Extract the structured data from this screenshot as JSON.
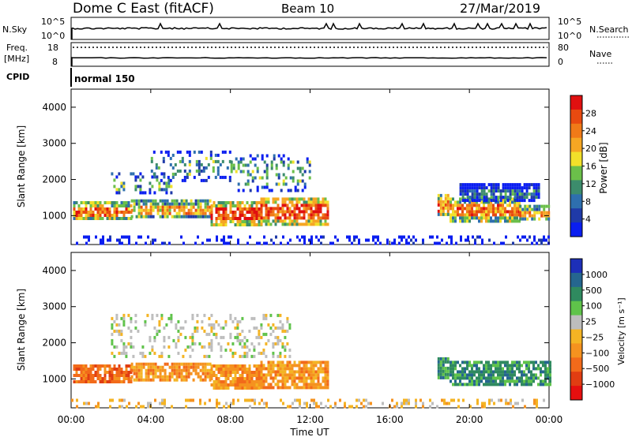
{
  "header": {
    "station": "Dome C East (fitACF)",
    "beam": "Beam 10",
    "date": "27/Mar/2019"
  },
  "top_panels": {
    "nsky_label": "N.Sky",
    "nsky_tick_hi": "10^5",
    "nsky_tick_lo": "10^0",
    "nsearch_label": "N.Search",
    "nsearch_tick_hi": "10^5",
    "nsearch_tick_lo": "10^0",
    "freq_label_1": "Freq.",
    "freq_label_2": "[MHz]",
    "freq_tick_hi": "18",
    "freq_tick_lo": "8",
    "nave_label": "Nave",
    "nave_tick_hi": "80",
    "nave_tick_lo": "0",
    "cpid_label": "CPID",
    "cpid_value": "normal 150"
  },
  "chart_data": [
    {
      "type": "heatmap",
      "name": "power",
      "ylabel": "Slant Range [km]",
      "yticks": [
        "1000",
        "2000",
        "3000",
        "4000"
      ],
      "ylim": [
        200,
        4500
      ],
      "colorbar_label": "Power [dB]",
      "colorbar_ticks": [
        "4",
        "8",
        "12",
        "16",
        "20",
        "24",
        "28"
      ],
      "colorbar_range": [
        0,
        32
      ],
      "colors": [
        "#0a1ef0",
        "#1f3aa8",
        "#2e6fae",
        "#3c8c6c",
        "#6bbf4a",
        "#f2e02a",
        "#f5a623",
        "#f07a18",
        "#e84a10",
        "#e01010"
      ],
      "regions": [
        {
          "t0": 0.1,
          "t1": 3.0,
          "r0": 900,
          "r1": 1400,
          "level": 24
        },
        {
          "t0": 3.0,
          "t1": 7.0,
          "r0": 950,
          "r1": 1450,
          "level": 22
        },
        {
          "t0": 7.0,
          "t1": 9.5,
          "r0": 750,
          "r1": 1400,
          "level": 30
        },
        {
          "t0": 9.5,
          "t1": 12.9,
          "r0": 800,
          "r1": 1500,
          "level": 27
        },
        {
          "t0": 18.4,
          "t1": 18.9,
          "r0": 1000,
          "r1": 1600,
          "level": 24
        },
        {
          "t0": 19.0,
          "t1": 22.5,
          "r0": 850,
          "r1": 1500,
          "level": 26
        },
        {
          "t0": 22.5,
          "t1": 24.0,
          "r0": 900,
          "r1": 1300,
          "level": 22
        },
        {
          "t0": 2.0,
          "t1": 5.0,
          "r0": 1600,
          "r1": 2200,
          "level": 10
        },
        {
          "t0": 4.0,
          "t1": 8.0,
          "r0": 2000,
          "r1": 2800,
          "level": 12
        },
        {
          "t0": 8.0,
          "t1": 12.0,
          "r0": 1700,
          "r1": 2700,
          "level": 9
        },
        {
          "t0": 19.5,
          "t1": 23.5,
          "r0": 1400,
          "r1": 1900,
          "level": 8
        },
        {
          "t0": 0.0,
          "t1": 24.0,
          "r0": 200,
          "r1": 450,
          "level": 6
        }
      ]
    },
    {
      "type": "heatmap",
      "name": "velocity",
      "ylabel": "Slant Range [km]",
      "yticks": [
        "1000",
        "2000",
        "3000",
        "4000"
      ],
      "ylim": [
        200,
        4500
      ],
      "colorbar_label": "Velocity [m s⁻¹]",
      "colorbar_ticks": [
        "1000",
        "500",
        "100",
        "25",
        "−25",
        "−100",
        "−500",
        "−1000"
      ],
      "colors": [
        "#1d2fb8",
        "#25668f",
        "#2f8a5f",
        "#5fc34a",
        "#bdbdbd",
        "#f4b424",
        "#f5921f",
        "#f26a1a",
        "#e13d12",
        "#e60f0f"
      ],
      "regions": [
        {
          "t0": 0.1,
          "t1": 3.0,
          "r0": 900,
          "r1": 1400,
          "cat": 7
        },
        {
          "t0": 3.0,
          "t1": 7.0,
          "r0": 950,
          "r1": 1450,
          "cat": 6
        },
        {
          "t0": 7.0,
          "t1": 9.5,
          "r0": 750,
          "r1": 1400,
          "cat": 6
        },
        {
          "t0": 9.5,
          "t1": 12.9,
          "r0": 800,
          "r1": 1500,
          "cat": 6
        },
        {
          "t0": 2.0,
          "t1": 11.0,
          "r0": 1600,
          "r1": 2800,
          "cat": 4
        },
        {
          "t0": 18.4,
          "t1": 18.9,
          "r0": 1000,
          "r1": 1600,
          "cat": 2
        },
        {
          "t0": 19.0,
          "t1": 24.0,
          "r0": 850,
          "r1": 1500,
          "cat": 2
        },
        {
          "t0": 0.0,
          "t1": 24.0,
          "r0": 200,
          "r1": 450,
          "cat": 5
        }
      ]
    }
  ],
  "xaxis": {
    "label": "Time UT",
    "ticks": [
      "00:00",
      "04:00",
      "08:00",
      "12:00",
      "16:00",
      "20:00",
      "00:00"
    ]
  }
}
